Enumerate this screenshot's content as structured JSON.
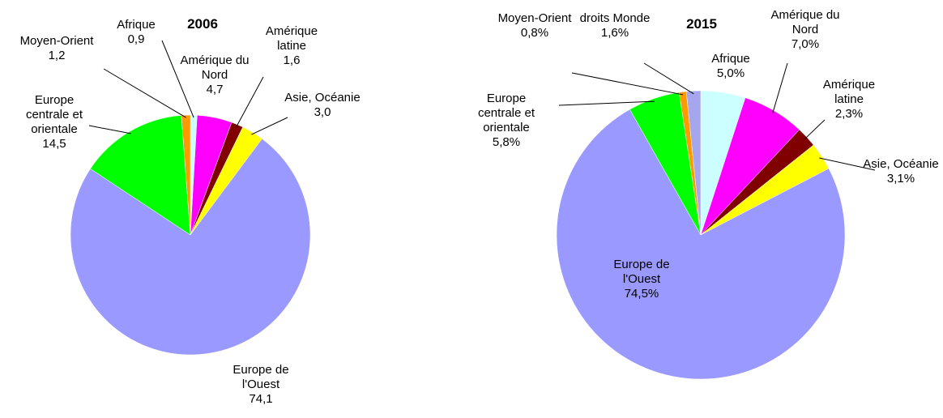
{
  "chart_data": [
    {
      "type": "pie",
      "title": "2006",
      "categories": [
        "Afrique",
        "Amérique du Nord",
        "Amérique latine",
        "Asie, Océanie",
        "Europe de l'Ouest",
        "Europe centrale et orientale",
        "Moyen-Orient"
      ],
      "values": [
        0.9,
        4.7,
        1.6,
        3.0,
        74.1,
        14.5,
        1.2
      ],
      "value_labels": [
        "0,9",
        "4,7",
        "1,6",
        "3,0",
        "74,1",
        "14,5",
        "1,2"
      ],
      "colors": [
        "#ccffff",
        "#ff00ff",
        "#800000",
        "#ffff00",
        "#9999ff",
        "#00ff00",
        "#ff9900"
      ]
    },
    {
      "type": "pie",
      "title": "2015",
      "categories": [
        "Afrique",
        "Amérique du Nord",
        "Amérique latine",
        "Asie, Océanie",
        "Europe de l'Ouest",
        "Europe centrale et orientale",
        "Moyen-Orient",
        "droits Monde"
      ],
      "values": [
        5.0,
        7.0,
        2.3,
        3.1,
        74.5,
        5.8,
        0.8,
        1.6
      ],
      "value_labels": [
        "5,0%",
        "7,0%",
        "2,3%",
        "3,1%",
        "74,5%",
        "5,8%",
        "0,8%",
        "1,6%"
      ],
      "colors": [
        "#ccffff",
        "#ff00ff",
        "#800000",
        "#ffff00",
        "#9999ff",
        "#00ff00",
        "#ff9900",
        "#a6a6ee"
      ]
    }
  ]
}
